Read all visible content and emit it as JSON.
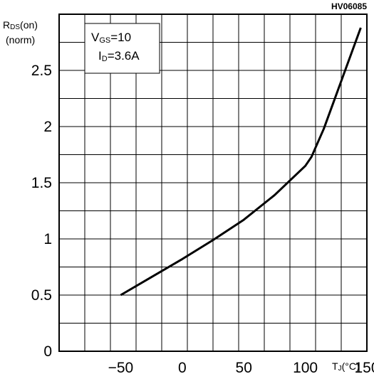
{
  "figure_code": "HV06085",
  "y_label_main": "R",
  "y_label_sub": "DS",
  "y_label_tail": "(on)",
  "y_label_unit": "(norm)",
  "x_label_main": "T",
  "x_label_sub": "J",
  "x_label_unit": "(°C)",
  "conditions": {
    "line1_main": "V",
    "line1_sub": "GS",
    "line1_value": "=10",
    "line2_main": "I",
    "line2_sub": "D",
    "line2_value": "=3.6A"
  },
  "chart_data": {
    "type": "line",
    "xlim": [
      -100,
      150
    ],
    "ylim": [
      0,
      3
    ],
    "x_ticks": [
      -50,
      0,
      50,
      100,
      150
    ],
    "x_tick_labels": [
      "−50",
      "0",
      "50",
      "100",
      "150"
    ],
    "y_ticks": [
      0,
      0.5,
      1,
      1.5,
      2,
      2.5
    ],
    "y_tick_labels": [
      "0",
      "0.5",
      "1",
      "1.5",
      "2",
      "2.5"
    ],
    "grid": true,
    "series": [
      {
        "x": [
          -50,
          -25,
          0,
          25,
          50,
          75,
          100,
          105,
          115,
          125,
          135,
          145
        ],
        "y": [
          0.5,
          0.66,
          0.82,
          0.99,
          1.17,
          1.39,
          1.65,
          1.73,
          1.98,
          2.28,
          2.58,
          2.88
        ]
      }
    ]
  }
}
